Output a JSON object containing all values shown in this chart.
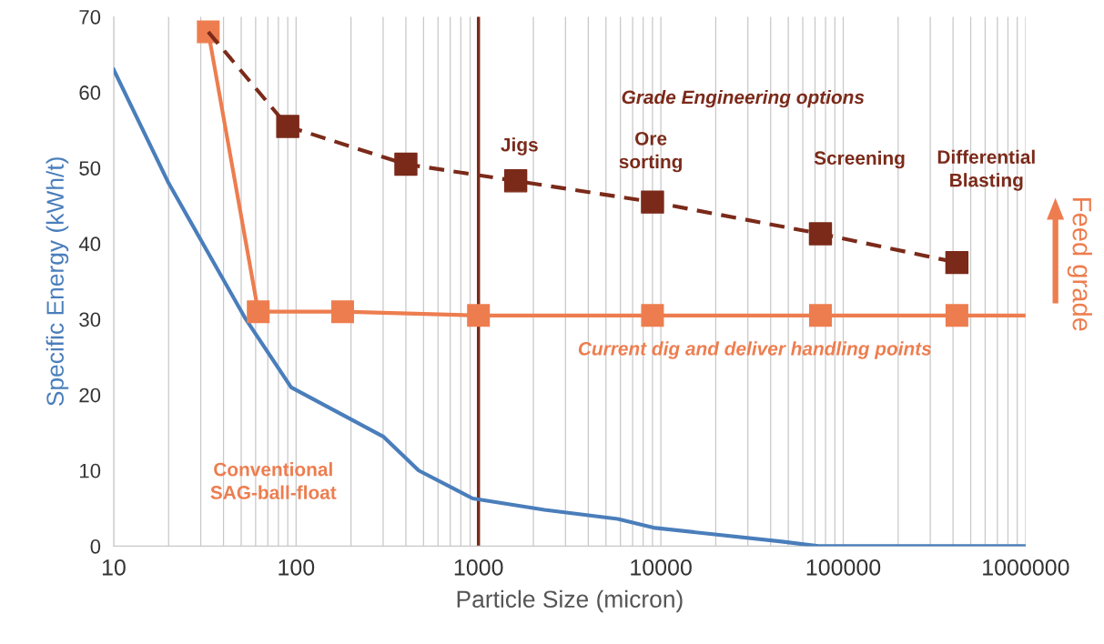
{
  "chart_data": {
    "type": "line",
    "xlabel": "Particle Size (micron)",
    "ylabel": "Specific Energy (kWh/t)",
    "series": [
      {
        "color": "#4a7ebb",
        "marker": "none",
        "line_style": "solid",
        "x": [
          10,
          20,
          53,
          94,
          300,
          470,
          930,
          2300,
          5800,
          9300,
          46000,
          73000,
          1000000
        ],
        "values": [
          63,
          48,
          30,
          21,
          14.5,
          10,
          6.3,
          4.8,
          3.6,
          2.4,
          0.6,
          0,
          0
        ]
      },
      {
        "color": "#ed7d4f",
        "marker": "square",
        "line_style": "solid",
        "x": [
          33,
          62,
          180,
          1000,
          9000,
          75000,
          420000
        ],
        "values": [
          68,
          31,
          31,
          30.5,
          30.5,
          30.5,
          30.5
        ]
      },
      {
        "color": "#ed7d4f",
        "marker": "none",
        "line_style": "solid",
        "x": [
          420000,
          1000000
        ],
        "values": [
          30.5,
          30.5
        ]
      },
      {
        "color": "#7b2a1a",
        "marker": "none",
        "line_style": "dashed",
        "x": [
          33,
          90,
          400,
          1600,
          9000,
          75000,
          420000
        ],
        "values": [
          68,
          55.5,
          50.5,
          48.3,
          45.5,
          41.3,
          37.5
        ]
      },
      {
        "type": "scatter",
        "color": "#7b2a1a",
        "marker": "square",
        "x": [
          90,
          400,
          1600,
          9000,
          75000,
          420000
        ],
        "values": [
          55.5,
          50.5,
          48.3,
          45.5,
          41.3,
          37.5
        ]
      }
    ],
    "ref_lines": [
      {
        "axis": "x",
        "value": 1000,
        "color": "#7b2a1a",
        "line_style": "solid"
      }
    ],
    "annotations": [
      "Grade Engineering options",
      "Jigs",
      "Ore\nsorting",
      "Screening",
      "Differential\nBlasting",
      "Current dig and deliver handling points",
      "Conventional\nSAG-ball-float",
      "Feed grade"
    ],
    "log": "x",
    "xlim": [
      10,
      1000000
    ],
    "xticks": [
      10,
      100,
      1000,
      10000,
      100000,
      1000000
    ],
    "ylim": [
      0,
      70
    ],
    "yticks": [
      0,
      10,
      20,
      30,
      40,
      50,
      60,
      70
    ],
    "grid": "x",
    "legend": false
  }
}
